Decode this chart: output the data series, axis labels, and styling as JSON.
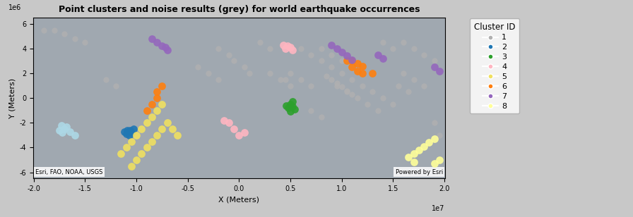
{
  "title": "Point clusters and noise results (grey) for world earthquake occurrences",
  "xlabel": "X (Meters)",
  "ylabel": "Y (Meters)",
  "xlim": [
    -20037508,
    20037508
  ],
  "ylim": [
    -6500000,
    6500000
  ],
  "xticks": [
    -20000000,
    -15000000,
    -10000000,
    -5000000,
    0,
    5000000,
    10000000,
    15000000,
    20000000
  ],
  "xtick_labels": [
    "-2.0",
    "-1.5",
    "-1.0",
    "-0.5",
    "0.0",
    "0.5",
    "1.0",
    "1.5",
    "2.0"
  ],
  "yticks": [
    -6000000,
    -4000000,
    -2000000,
    0,
    2000000,
    4000000,
    6000000
  ],
  "ytick_labels": [
    "-6",
    "-4",
    "-2",
    "0",
    "2",
    "4",
    "6"
  ],
  "x_scale_label": "1e7",
  "y_scale_label": "1e6",
  "ocean_color": "#a0a8b0",
  "land_color": "#dcdcdc",
  "fig_background": "#c8c8c8",
  "attribution_left": "Esri, FAO, NOAA, USGS",
  "attribution_right": "Powered by Esri",
  "cluster_colors": {
    "noise": "#b0b0b0",
    "1": "#add8e6",
    "2": "#1f77b4",
    "3": "#2ca02c",
    "4": "#ffb6c1",
    "5": "#f0e060",
    "6": "#ff7f0e",
    "7": "#9467bd",
    "8": "#ffff99"
  },
  "point_size": 60,
  "noise_size": 35,
  "noise_points": [
    [
      -19000000,
      5500000
    ],
    [
      -18000000,
      5500000
    ],
    [
      -17000000,
      5200000
    ],
    [
      -16000000,
      4800000
    ],
    [
      -15000000,
      4500000
    ],
    [
      16000000,
      4500000
    ],
    [
      17000000,
      4000000
    ],
    [
      18000000,
      3500000
    ],
    [
      19000000,
      3000000
    ],
    [
      14000000,
      4500000
    ],
    [
      15000000,
      4000000
    ],
    [
      12000000,
      1000000
    ],
    [
      13000000,
      500000
    ],
    [
      14000000,
      0
    ],
    [
      15000000,
      -500000
    ],
    [
      6000000,
      4000000
    ],
    [
      7000000,
      3500000
    ],
    [
      8000000,
      3000000
    ],
    [
      5000000,
      2000000
    ],
    [
      6000000,
      1500000
    ],
    [
      7000000,
      1000000
    ],
    [
      4500000,
      1500000
    ],
    [
      5000000,
      1000000
    ],
    [
      9000000,
      2500000
    ],
    [
      10000000,
      2000000
    ],
    [
      11000000,
      1500000
    ],
    [
      9500000,
      1000000
    ],
    [
      10500000,
      500000
    ],
    [
      11500000,
      0
    ],
    [
      12500000,
      -500000
    ],
    [
      13500000,
      -1000000
    ],
    [
      8000000,
      4000000
    ],
    [
      9000000,
      3500000
    ],
    [
      10000000,
      3000000
    ],
    [
      16000000,
      2000000
    ],
    [
      17000000,
      1500000
    ],
    [
      18000000,
      1000000
    ],
    [
      15500000,
      1000000
    ],
    [
      16500000,
      500000
    ],
    [
      3000000,
      2000000
    ],
    [
      4000000,
      1500000
    ],
    [
      -500000,
      3000000
    ],
    [
      500000,
      2500000
    ],
    [
      1000000,
      2000000
    ],
    [
      2000000,
      4500000
    ],
    [
      3000000,
      4000000
    ],
    [
      -2000000,
      4000000
    ],
    [
      -1000000,
      3500000
    ],
    [
      7000000,
      -1000000
    ],
    [
      8000000,
      -1500000
    ],
    [
      -4000000,
      2500000
    ],
    [
      -3000000,
      2000000
    ],
    [
      -2000000,
      1500000
    ],
    [
      19000000,
      -2000000
    ],
    [
      19500000,
      -3000000
    ],
    [
      -13000000,
      1500000
    ],
    [
      -12000000,
      1000000
    ]
  ],
  "cluster1_noise_pts": [
    [
      8500000,
      1800000
    ],
    [
      9000000,
      1500000
    ],
    [
      9500000,
      1200000
    ],
    [
      10000000,
      900000
    ],
    [
      10500000,
      600000
    ],
    [
      11000000,
      300000
    ]
  ],
  "cluster2_points": [
    [
      -10500000,
      -2800000
    ],
    [
      -10700000,
      -3000000
    ],
    [
      -10900000,
      -2600000
    ],
    [
      -11000000,
      -2900000
    ],
    [
      -11200000,
      -2700000
    ],
    [
      -10300000,
      -2500000
    ],
    [
      -10600000,
      -2600000
    ]
  ],
  "cluster3_points": [
    [
      5000000,
      -500000
    ],
    [
      5200000,
      -700000
    ],
    [
      5400000,
      -900000
    ],
    [
      5000000,
      -1100000
    ],
    [
      4800000,
      -800000
    ],
    [
      4600000,
      -600000
    ],
    [
      5200000,
      -300000
    ]
  ],
  "cluster4_points": [
    [
      4500000,
      4000000
    ],
    [
      4700000,
      4200000
    ],
    [
      5000000,
      4100000
    ],
    [
      4300000,
      4300000
    ],
    [
      5200000,
      3900000
    ],
    [
      -1000000,
      -2000000
    ],
    [
      -500000,
      -2500000
    ],
    [
      0,
      -3000000
    ],
    [
      500000,
      -2800000
    ],
    [
      -1500000,
      -1800000
    ]
  ],
  "cluster5_points": [
    [
      -9500000,
      -2500000
    ],
    [
      -9000000,
      -2000000
    ],
    [
      -8500000,
      -1500000
    ],
    [
      -8000000,
      -1000000
    ],
    [
      -7500000,
      -500000
    ],
    [
      -10000000,
      -3000000
    ],
    [
      -10500000,
      -3500000
    ],
    [
      -7000000,
      -2000000
    ],
    [
      -7500000,
      -2500000
    ],
    [
      -8000000,
      -3000000
    ],
    [
      -8500000,
      -3500000
    ],
    [
      -9000000,
      -4000000
    ],
    [
      -9500000,
      -4500000
    ],
    [
      -10000000,
      -5000000
    ],
    [
      -10500000,
      -5500000
    ],
    [
      -6500000,
      -2500000
    ],
    [
      -6000000,
      -3000000
    ],
    [
      -11000000,
      -4000000
    ],
    [
      -11500000,
      -4500000
    ]
  ],
  "cluster6_points": [
    [
      11000000,
      2500000
    ],
    [
      11500000,
      2200000
    ],
    [
      12000000,
      2000000
    ],
    [
      11000000,
      3000000
    ],
    [
      11500000,
      2800000
    ],
    [
      12000000,
      2600000
    ],
    [
      10500000,
      3000000
    ],
    [
      13000000,
      2000000
    ],
    [
      -9000000,
      -1000000
    ],
    [
      -8500000,
      -500000
    ],
    [
      -8000000,
      0
    ],
    [
      -8000000,
      500000
    ],
    [
      -7500000,
      1000000
    ]
  ],
  "cluster7_points": [
    [
      -8000000,
      4500000
    ],
    [
      -7500000,
      4200000
    ],
    [
      -7000000,
      3900000
    ],
    [
      -8500000,
      4800000
    ],
    [
      -7200000,
      4100000
    ],
    [
      9500000,
      4000000
    ],
    [
      10000000,
      3700000
    ],
    [
      10500000,
      3400000
    ],
    [
      11000000,
      3100000
    ],
    [
      9000000,
      4300000
    ],
    [
      13500000,
      3500000
    ],
    [
      14000000,
      3200000
    ],
    [
      19000000,
      2500000
    ],
    [
      19500000,
      2200000
    ]
  ],
  "cluster8_points": [
    [
      17000000,
      -4500000
    ],
    [
      17500000,
      -4200000
    ],
    [
      18000000,
      -3900000
    ],
    [
      18500000,
      -3600000
    ],
    [
      19000000,
      -3300000
    ],
    [
      16500000,
      -4800000
    ],
    [
      17000000,
      -5200000
    ],
    [
      19500000,
      -5000000
    ],
    [
      19000000,
      -5300000
    ]
  ],
  "cluster1_points": [
    [
      -17000000,
      -2500000
    ],
    [
      -17200000,
      -2800000
    ],
    [
      -16800000,
      -2300000
    ],
    [
      -17500000,
      -2600000
    ],
    [
      -16500000,
      -2700000
    ],
    [
      -16000000,
      -3000000
    ],
    [
      -17300000,
      -2200000
    ]
  ]
}
